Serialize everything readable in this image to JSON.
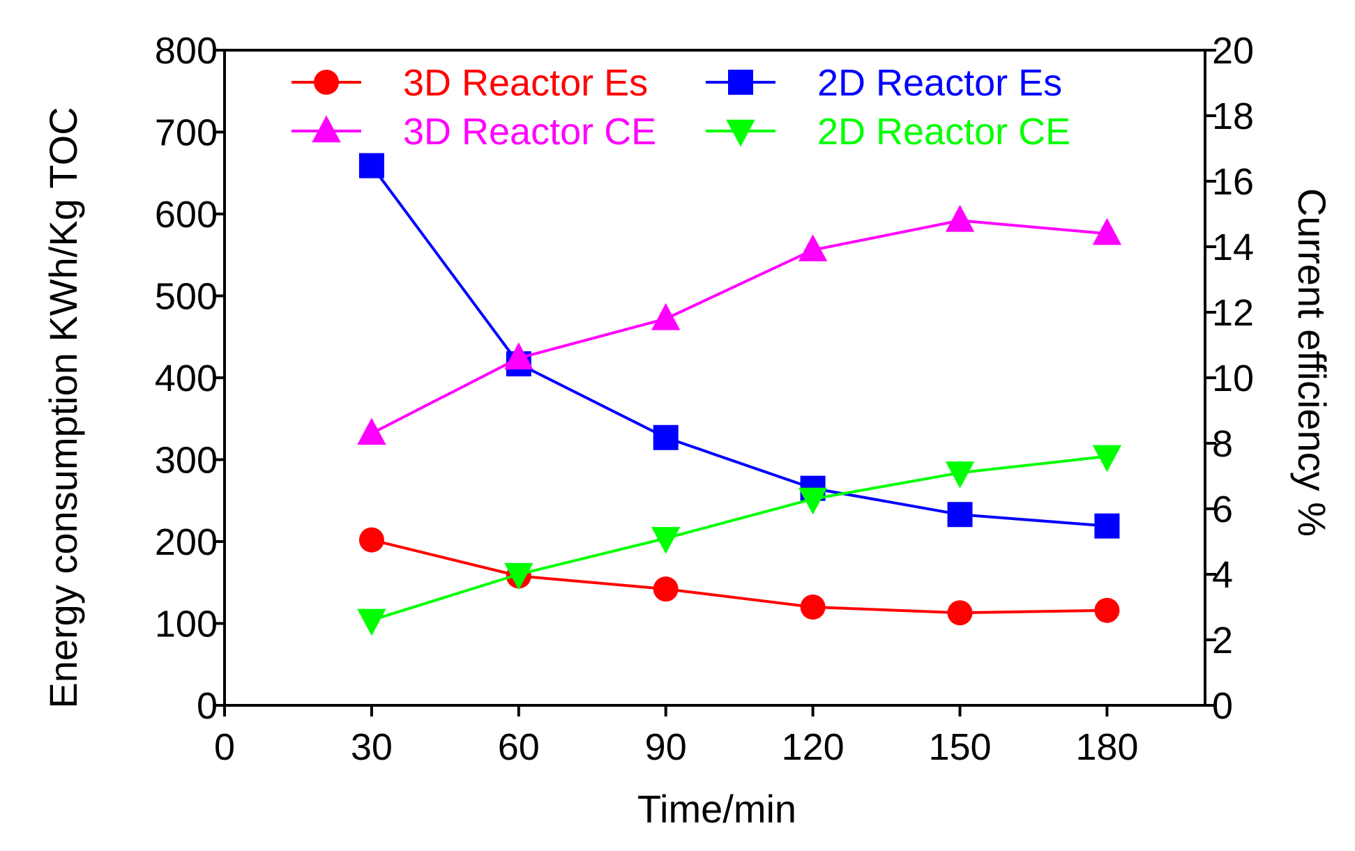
{
  "chart_data": {
    "type": "line",
    "title": "",
    "xlabel": "Time/min",
    "ylabel_left": "Energy consumption KWh/Kg TOC",
    "ylabel_right": "Current efficiency %",
    "x": [
      30,
      60,
      90,
      120,
      150,
      180
    ],
    "xlim": [
      0,
      200
    ],
    "x_ticks": [
      0,
      30,
      60,
      90,
      120,
      150,
      180
    ],
    "ylim_left": [
      0,
      800
    ],
    "y_ticks_left": [
      0,
      100,
      200,
      300,
      400,
      500,
      600,
      700,
      800
    ],
    "ylim_right": [
      0,
      20
    ],
    "y_ticks_right": [
      0,
      2,
      4,
      6,
      8,
      10,
      12,
      14,
      16,
      18,
      20
    ],
    "grid": false,
    "legend_position": "top",
    "series": [
      {
        "name": "3D Reactor Es",
        "axis": "left",
        "color": "#ff0000",
        "marker": "circle",
        "values": [
          202,
          158,
          142,
          120,
          113,
          116
        ]
      },
      {
        "name": "2D Reactor Es",
        "axis": "left",
        "color": "#0000ff",
        "marker": "square",
        "values": [
          659,
          417,
          327,
          265,
          233,
          219
        ]
      },
      {
        "name": "3D Reactor CE",
        "axis": "right",
        "color": "#ff00ff",
        "marker": "triangle-up",
        "values": [
          8.3,
          10.6,
          11.8,
          13.9,
          14.8,
          14.4
        ]
      },
      {
        "name": "2D Reactor CE",
        "axis": "right",
        "color": "#00ff00",
        "marker": "triangle-down",
        "values": [
          2.6,
          4.0,
          5.1,
          6.3,
          7.1,
          7.6
        ]
      }
    ]
  }
}
